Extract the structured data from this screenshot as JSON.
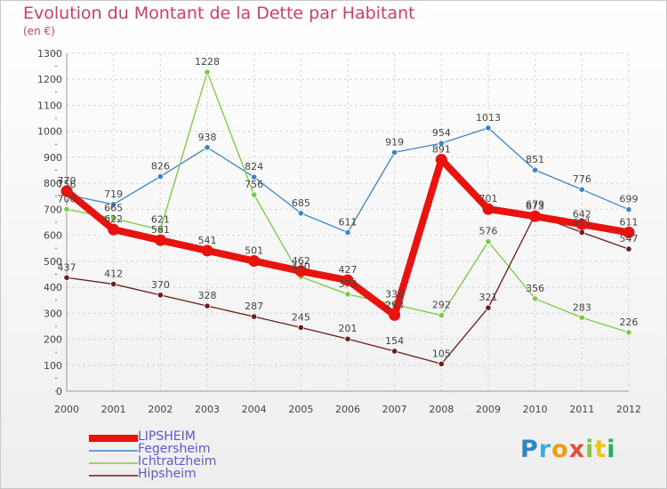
{
  "chart_data": {
    "type": "line",
    "title": "Evolution du Montant de la Dette par Habitant",
    "subtitle": "(en €)",
    "x": [
      "2000",
      "2001",
      "2002",
      "2003",
      "2004",
      "2005",
      "2006",
      "2007",
      "2008",
      "2009",
      "2010",
      "2011",
      "2012"
    ],
    "ylim": [
      0,
      1300
    ],
    "yticks": [
      0,
      100,
      200,
      300,
      400,
      500,
      600,
      700,
      800,
      900,
      1000,
      1100,
      1200,
      1300
    ],
    "grid": true,
    "legend_position": "bottom-left",
    "series": [
      {
        "name": "LIPSHEIM",
        "color": "#e8120e",
        "emphasis": true,
        "values": [
          770,
          622,
          581,
          541,
          501,
          462,
          427,
          293,
          891,
          701,
          673,
          642,
          611
        ]
      },
      {
        "name": "Fegersheim",
        "color": "#3d85c6",
        "emphasis": false,
        "values": [
          756,
          719,
          826,
          938,
          824,
          685,
          611,
          919,
          954,
          1013,
          851,
          776,
          699
        ]
      },
      {
        "name": "Ichtratzheim",
        "color": "#7ac943",
        "emphasis": false,
        "values": [
          700,
          665,
          621,
          1228,
          756,
          440,
          373,
          333,
          292,
          576,
          356,
          283,
          226
        ]
      },
      {
        "name": "Hipsheim",
        "color": "#6b1c1c",
        "emphasis": false,
        "values": [
          437,
          412,
          370,
          328,
          287,
          245,
          201,
          154,
          105,
          321,
          679,
          611,
          547
        ]
      }
    ]
  },
  "logo": {
    "letters": [
      "P",
      "r",
      "o",
      "x",
      "i",
      "t",
      "i"
    ]
  }
}
